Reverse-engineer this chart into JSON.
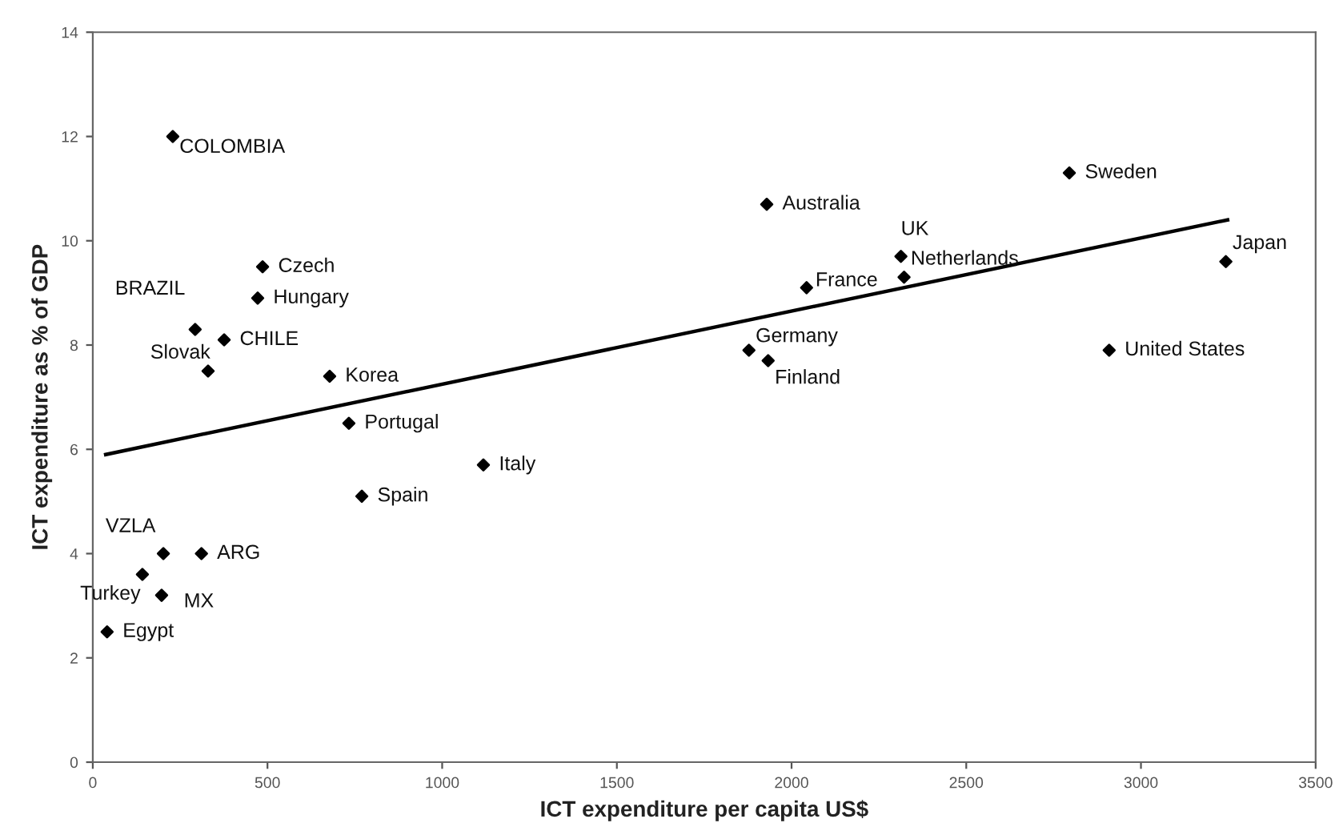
{
  "chart_data": {
    "type": "scatter",
    "xlabel": "ICT expenditure per capita US$",
    "ylabel": "ICT expenditure as % of GDP",
    "xlim": [
      0,
      3500
    ],
    "ylim": [
      0,
      14
    ],
    "xticks": [
      0,
      500,
      1000,
      1500,
      2000,
      2500,
      3000,
      3500
    ],
    "yticks": [
      0,
      2,
      4,
      6,
      8,
      10,
      12,
      14
    ],
    "grid": false,
    "legend": false,
    "marker": "diamond",
    "series": [
      {
        "color": "#000000",
        "x": [
          229,
          486,
          472,
          293,
          376,
          330,
          678,
          733,
          1118,
          770,
          202,
          311,
          142,
          197,
          41,
          1929,
          2795,
          2313,
          2322,
          2043,
          3243,
          1878,
          1933,
          2909
        ],
        "values": [
          12.0,
          9.5,
          8.9,
          8.3,
          8.1,
          7.5,
          7.4,
          6.5,
          5.7,
          5.1,
          4.0,
          4.0,
          3.6,
          3.2,
          2.5,
          10.7,
          11.3,
          9.7,
          9.3,
          9.1,
          9.6,
          7.9,
          7.7,
          7.9
        ]
      },
      {
        "type": "line",
        "color": "#000000",
        "marker": "none",
        "x": [
          37,
          3248
        ],
        "values": [
          5.9,
          10.4
        ]
      }
    ],
    "annotations": [
      {
        "text": "COLOMBIA",
        "x": 229,
        "y": 12.0
      },
      {
        "text": "Czech",
        "x": 486,
        "y": 9.5
      },
      {
        "text": "Hungary",
        "x": 472,
        "y": 8.9
      },
      {
        "text": "BRAZIL",
        "x": 293,
        "y": 8.3
      },
      {
        "text": "CHILE",
        "x": 376,
        "y": 8.1
      },
      {
        "text": "Slovak",
        "x": 330,
        "y": 7.5
      },
      {
        "text": "Korea",
        "x": 678,
        "y": 7.4
      },
      {
        "text": "Portugal",
        "x": 733,
        "y": 6.5
      },
      {
        "text": "Italy",
        "x": 1118,
        "y": 5.7
      },
      {
        "text": "Spain",
        "x": 770,
        "y": 5.1
      },
      {
        "text": "VZLA",
        "x": 202,
        "y": 4.0
      },
      {
        "text": "ARG",
        "x": 311,
        "y": 4.0
      },
      {
        "text": "Turkey",
        "x": 142,
        "y": 3.6
      },
      {
        "text": "MX",
        "x": 197,
        "y": 3.2
      },
      {
        "text": "Egypt",
        "x": 41,
        "y": 2.5
      },
      {
        "text": "Australia",
        "x": 1929,
        "y": 10.7
      },
      {
        "text": "Sweden",
        "x": 2795,
        "y": 11.3
      },
      {
        "text": "UK",
        "x": 2313,
        "y": 9.7
      },
      {
        "text": "Netherlands",
        "x": 2322,
        "y": 9.3
      },
      {
        "text": "France",
        "x": 2043,
        "y": 9.1
      },
      {
        "text": "Japan",
        "x": 3243,
        "y": 9.6
      },
      {
        "text": "Germany",
        "x": 1878,
        "y": 7.9
      },
      {
        "text": "Finland",
        "x": 1933,
        "y": 7.7
      },
      {
        "text": "United States",
        "x": 2909,
        "y": 7.9
      }
    ]
  }
}
